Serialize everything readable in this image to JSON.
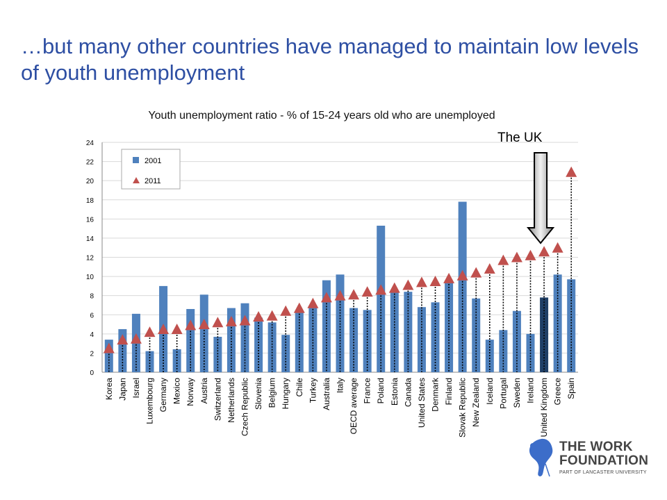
{
  "slide": {
    "title": "…but many other countries have managed to maintain low levels of youth unemployment",
    "title_color": "#2E4FA3"
  },
  "callout": {
    "label": "The UK",
    "arrow": "down-arrow"
  },
  "logo": {
    "line1": "THE WORK",
    "line2": "FOUNDATION",
    "subtitle": "PART OF LANCASTER UNIVERSITY",
    "icon": "figure-logo-icon"
  },
  "chart_data": {
    "type": "bar",
    "title": "Youth unemployment ratio - % of 15-24 years old who are unemployed",
    "ylim": [
      0,
      24
    ],
    "yticks": [
      0,
      2,
      4,
      6,
      8,
      10,
      12,
      14,
      16,
      18,
      20,
      22,
      24
    ],
    "categories": [
      "Korea",
      "Japan",
      "Israel",
      "Luxembourg",
      "Germany",
      "Mexico",
      "Norway",
      "Austria",
      "Switzerland",
      "Netherlands",
      "Czech Republic",
      "Slovenia",
      "Belgium",
      "Hungary",
      "Chile",
      "Turkey",
      "Australia",
      "Italy",
      "OECD average",
      "France",
      "Poland",
      "Estonia",
      "Canada",
      "United States",
      "Denmark",
      "Finland",
      "Slovak Republic",
      "New Zealand",
      "Iceland",
      "Portugal",
      "Sweden",
      "Ireland",
      "United Kingdom",
      "Greece",
      "Spain"
    ],
    "highlight_category": "United Kingdom",
    "series": [
      {
        "name": "2001",
        "type": "bar",
        "color": "#4F81BD",
        "highlight_color": "#1F3F66",
        "values": [
          3.4,
          4.5,
          6.1,
          2.2,
          9.0,
          2.4,
          6.6,
          8.1,
          3.7,
          6.7,
          7.2,
          5.7,
          5.2,
          3.9,
          6.3,
          6.8,
          9.6,
          10.2,
          6.7,
          6.5,
          15.3,
          8.5,
          8.4,
          6.8,
          7.3,
          9.5,
          17.8,
          7.7,
          3.4,
          4.4,
          6.4,
          4.0,
          7.8,
          10.2,
          9.7
        ]
      },
      {
        "name": "2011",
        "type": "marker",
        "color": "#C0504D",
        "values": [
          2.5,
          3.4,
          3.5,
          4.2,
          4.5,
          4.5,
          4.9,
          5.0,
          5.2,
          5.3,
          5.4,
          5.8,
          5.9,
          6.4,
          6.7,
          7.2,
          7.8,
          8.0,
          8.1,
          8.4,
          8.6,
          8.8,
          9.1,
          9.4,
          9.5,
          9.8,
          10.1,
          10.4,
          10.8,
          11.7,
          12.0,
          12.2,
          12.6,
          13.0,
          20.9
        ]
      }
    ],
    "legend": {
      "placement": "top-left"
    },
    "grid": true
  }
}
